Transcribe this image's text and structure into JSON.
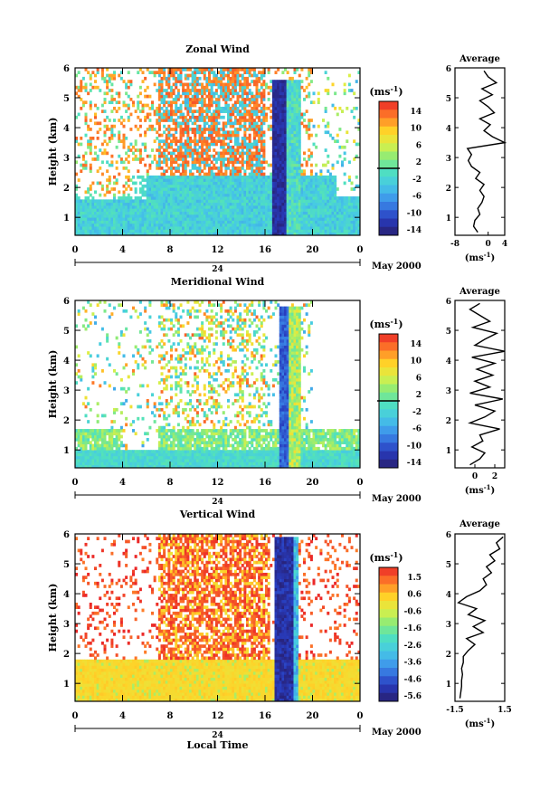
{
  "chart_data": [
    {
      "type": "heatmap",
      "title": "Zonal Wind",
      "ylabel": "Height (km)",
      "ylim": [
        0.4,
        6
      ],
      "yticks": [
        1,
        2,
        3,
        4,
        5,
        6
      ],
      "xlim": [
        0,
        24
      ],
      "xtick_labels": [
        "0",
        "4",
        "8",
        "12",
        "16",
        "20",
        "0"
      ],
      "date_day": "24",
      "date_label": "May 2000",
      "colorbar": {
        "unit": "(ms⁻¹)",
        "ticks": [
          "14",
          "10",
          "6",
          "2",
          "-2",
          "-6",
          "-10",
          "-14"
        ],
        "range": [
          -16,
          16
        ],
        "zero_line": 0
      },
      "pattern": "zonal",
      "average": {
        "title": "Average",
        "xlabel": "(ms⁻¹)",
        "xlim": [
          -8,
          4
        ],
        "xtick_labels": [
          "-8",
          "0",
          "4"
        ],
        "ylim": [
          0.4,
          6
        ],
        "yticks": [
          1,
          2,
          3,
          4,
          5,
          6
        ],
        "profile": {
          "height": [
            0.5,
            0.7,
            0.9,
            1.1,
            1.3,
            1.5,
            1.7,
            1.9,
            2.1,
            2.3,
            2.5,
            2.7,
            2.9,
            3.1,
            3.3,
            3.5,
            3.7,
            3.9,
            4.1,
            4.3,
            4.5,
            4.7,
            4.9,
            5.1,
            5.3,
            5.5,
            5.7,
            5.9
          ],
          "value": [
            -2.5,
            -3.5,
            -3.2,
            -2.0,
            -2.5,
            -1.5,
            -1.0,
            -2.0,
            -1.0,
            -3.0,
            -2.0,
            -4.0,
            -4.8,
            -4.0,
            -5.0,
            4.0,
            1.0,
            -1.0,
            0.5,
            -2.0,
            1.5,
            0.0,
            -2.0,
            1.0,
            -1.5,
            2.0,
            0.0,
            -1.0
          ]
        }
      }
    },
    {
      "type": "heatmap",
      "title": "Meridional Wind",
      "ylabel": "Height (km)",
      "ylim": [
        0.4,
        6
      ],
      "yticks": [
        1,
        2,
        3,
        4,
        5,
        6
      ],
      "xlim": [
        0,
        24
      ],
      "xtick_labels": [
        "0",
        "4",
        "8",
        "12",
        "16",
        "20",
        "0"
      ],
      "date_day": "24",
      "date_label": "May 2000",
      "colorbar": {
        "unit": "(ms⁻¹)",
        "ticks": [
          "14",
          "10",
          "6",
          "2",
          "-2",
          "-6",
          "-10",
          "-14"
        ],
        "range": [
          -16,
          16
        ],
        "zero_line": 0
      },
      "pattern": "meridional",
      "average": {
        "title": "Average",
        "xlabel": "(ms⁻¹)",
        "xlim": [
          -2,
          3
        ],
        "xtick_labels": [
          "0",
          "2"
        ],
        "xtick_values": [
          0,
          2
        ],
        "ylim": [
          0.4,
          6
        ],
        "yticks": [
          1,
          2,
          3,
          4,
          5,
          6
        ],
        "profile": {
          "height": [
            0.5,
            0.7,
            0.9,
            1.1,
            1.3,
            1.5,
            1.7,
            1.9,
            2.1,
            2.3,
            2.5,
            2.7,
            2.9,
            3.1,
            3.3,
            3.5,
            3.7,
            3.9,
            4.1,
            4.3,
            4.5,
            4.7,
            4.9,
            5.1,
            5.3,
            5.5,
            5.7,
            5.9
          ],
          "value": [
            -0.5,
            0.5,
            1.0,
            -0.3,
            0.8,
            0.5,
            2.5,
            -0.5,
            1.0,
            2.0,
            0.0,
            2.8,
            -0.5,
            1.5,
            0.0,
            1.8,
            0.2,
            2.0,
            -0.3,
            3.0,
            0.0,
            1.0,
            2.2,
            -0.2,
            1.5,
            0.5,
            -0.5,
            0.5
          ]
        }
      }
    },
    {
      "type": "heatmap",
      "title": "Vertical Wind",
      "ylabel": "Height (km)",
      "xlabel": "Local Time",
      "ylim": [
        0.4,
        6
      ],
      "yticks": [
        1,
        2,
        3,
        4,
        5,
        6
      ],
      "xlim": [
        0,
        24
      ],
      "xtick_labels": [
        "0",
        "4",
        "8",
        "12",
        "16",
        "20",
        "0"
      ],
      "date_day": "24",
      "date_label": "May 2000",
      "colorbar": {
        "unit": "(ms⁻¹)",
        "ticks": [
          "1.5",
          "0.6",
          "-0.6",
          "-1.6",
          "-2.6",
          "-3.6",
          "-4.6",
          "-5.6"
        ],
        "range": [
          -6,
          2
        ],
        "zero_line": null
      },
      "pattern": "vertical",
      "average": {
        "title": "Average",
        "xlabel": "(ms⁻¹)",
        "xlim": [
          -1.5,
          1.5
        ],
        "xtick_labels": [
          "-1.5",
          "1.5"
        ],
        "ylim": [
          0.4,
          6
        ],
        "yticks": [
          1,
          2,
          3,
          4,
          5,
          6
        ],
        "profile": {
          "height": [
            0.5,
            0.7,
            0.9,
            1.1,
            1.3,
            1.5,
            1.7,
            1.9,
            2.1,
            2.3,
            2.5,
            2.7,
            2.9,
            3.1,
            3.3,
            3.5,
            3.7,
            3.9,
            4.1,
            4.3,
            4.5,
            4.7,
            4.9,
            5.1,
            5.3,
            5.5,
            5.7,
            5.9
          ],
          "value": [
            -1.2,
            -1.15,
            -1.1,
            -1.1,
            -1.05,
            -1.1,
            -1.0,
            -1.0,
            -0.7,
            -0.3,
            -0.8,
            0.2,
            -0.4,
            0.3,
            -0.7,
            -0.2,
            -1.3,
            -0.8,
            0.0,
            0.4,
            0.2,
            0.7,
            0.4,
            0.9,
            0.6,
            1.2,
            1.0,
            1.4
          ]
        }
      }
    }
  ]
}
